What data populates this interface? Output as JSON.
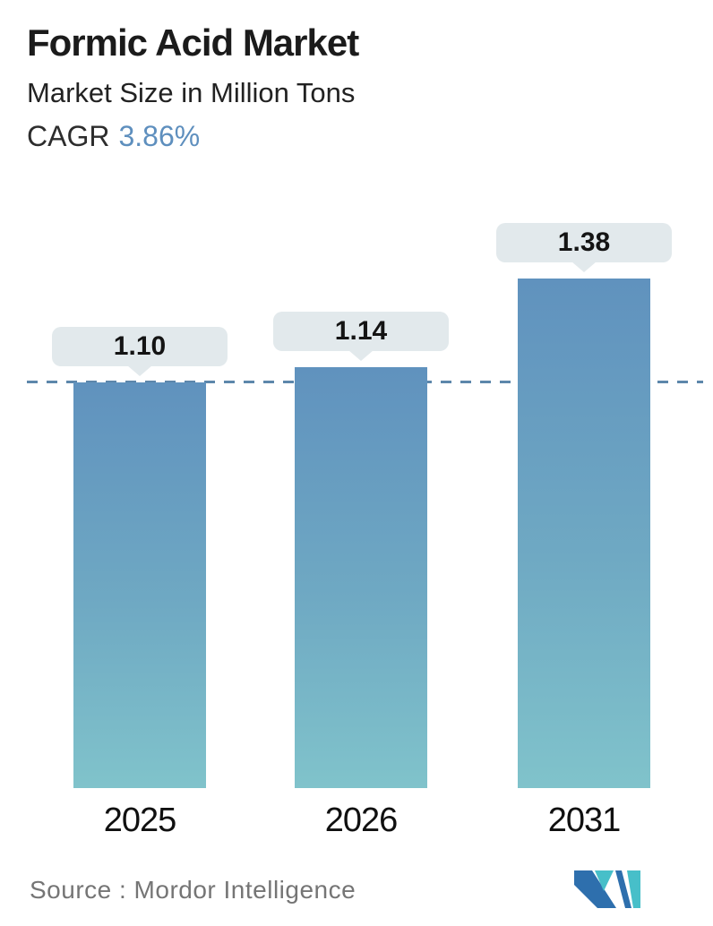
{
  "header": {
    "title": "Formic Acid Market",
    "subtitle": "Market Size in Million Tons",
    "cagr_label": "CAGR",
    "cagr_value": "3.86%"
  },
  "chart_data": {
    "type": "bar",
    "categories": [
      "2025",
      "2026",
      "2031"
    ],
    "values": [
      1.1,
      1.14,
      1.38
    ],
    "value_labels": [
      "1.10",
      "1.14",
      "1.38"
    ],
    "title": "Formic Acid Market",
    "subtitle": "Market Size in Million Tons",
    "cagr": "3.86%",
    "unit": "Million Tons",
    "ylim": [
      0,
      1.55
    ],
    "baseline_value": 1.1,
    "baseline_style": "dashed",
    "gridlines": false,
    "legend": false,
    "bar_gradient_top": "#6092be",
    "bar_gradient_bottom": "#80c3cb",
    "dashed_line_color": "#5d87ab",
    "label_bubble_color": "#e2e9ec"
  },
  "footer": {
    "source": "Source :  Mordor Intelligence",
    "logo": "mordor-intelligence-logo"
  },
  "colors": {
    "accent_blue": "#5e8fbe",
    "title_color": "#1b1b1b",
    "source_gray": "#757575"
  }
}
